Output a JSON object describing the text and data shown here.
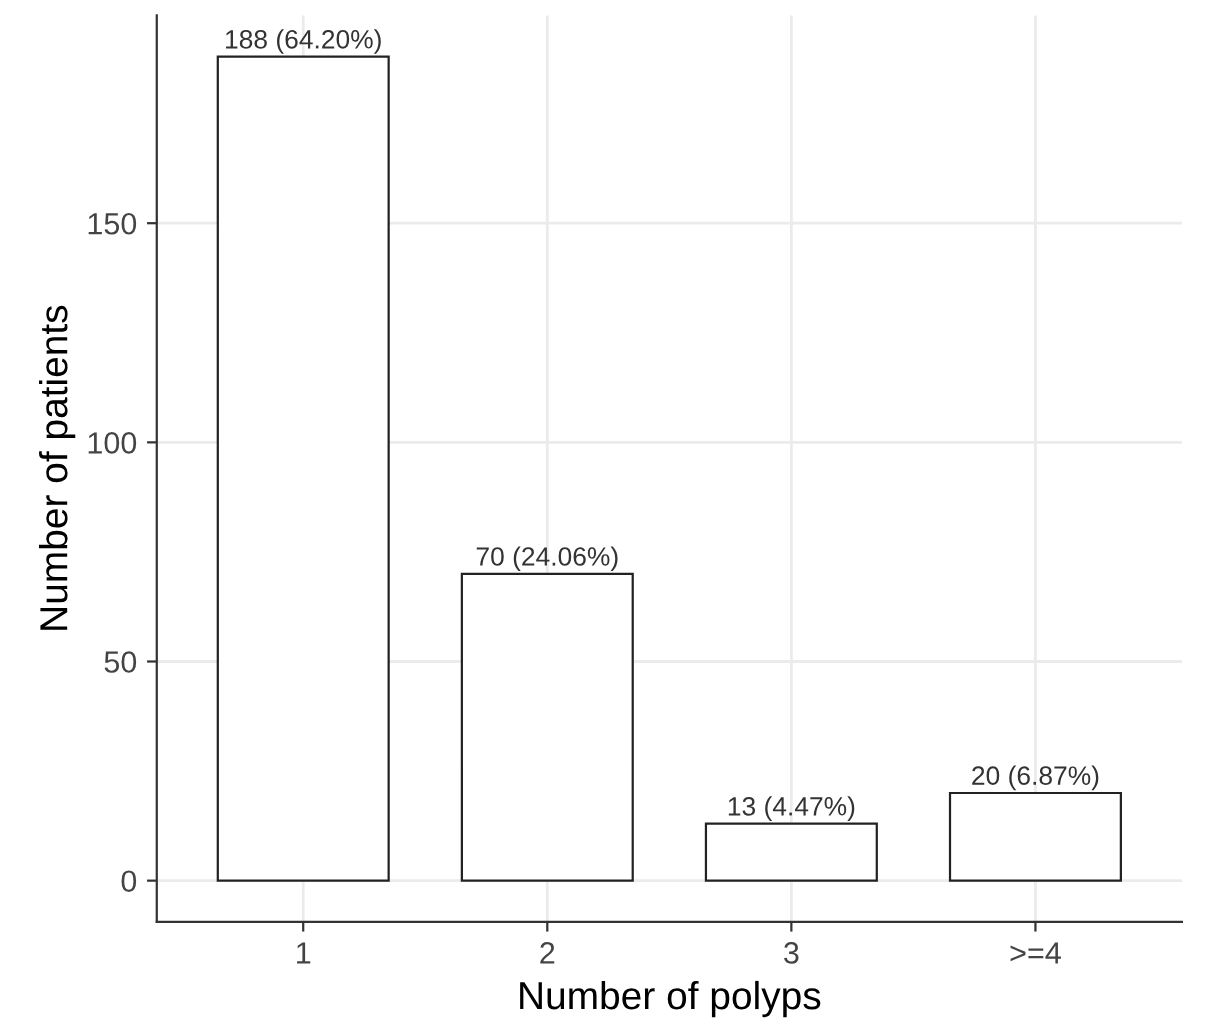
{
  "chart_data": {
    "type": "bar",
    "xlabel": "Number of polyps",
    "ylabel": "Number of patients",
    "categories": [
      "1",
      "2",
      "3",
      ">=4"
    ],
    "series": [
      {
        "color": "#ffffff",
        "values": [
          188,
          70,
          13,
          20
        ],
        "value_labels": [
          "188 (64.20%)",
          "70 (24.06%)",
          "13 (4.47%)",
          "20 (6.87%)"
        ]
      }
    ],
    "ylim": [
      -9.4,
      197.4
    ],
    "yticks": [
      0,
      50,
      100,
      150
    ],
    "grid": true
  }
}
